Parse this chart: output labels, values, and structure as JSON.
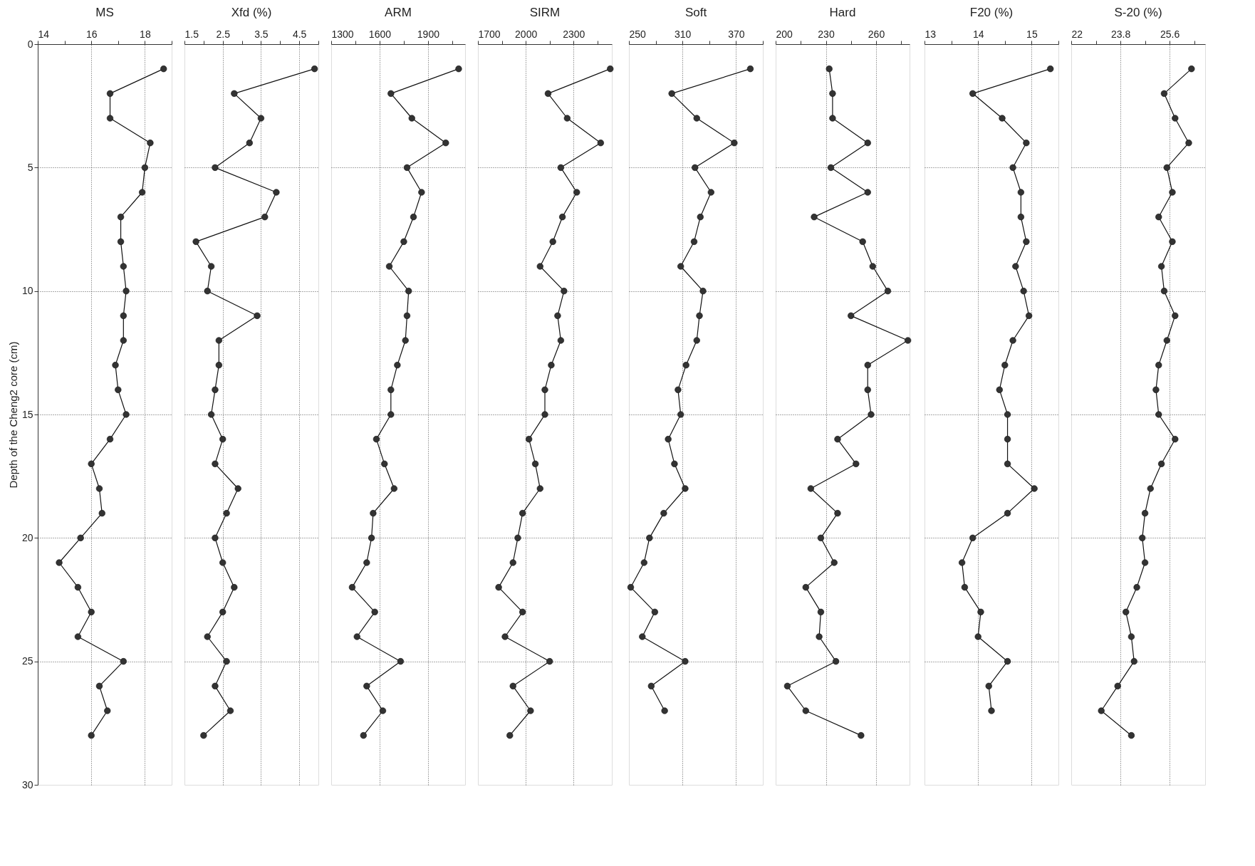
{
  "chart_data": [
    {
      "type": "line",
      "title": "MS",
      "ylabel": "Depth of the Cheng2 core (cm)",
      "orientation": "horizontal",
      "marker": "circle",
      "line_style": "solid",
      "grid": true,
      "x": [
        1,
        2,
        3,
        4,
        5,
        6,
        7,
        8,
        9,
        10,
        11,
        12,
        13,
        14,
        15,
        16,
        17,
        18,
        19,
        20,
        21,
        22,
        23,
        24,
        25,
        26,
        27,
        28
      ],
      "series": [
        {
          "color": "#333333",
          "values": [
            18.7,
            16.7,
            16.7,
            18.2,
            18.0,
            17.9,
            17.1,
            17.1,
            17.2,
            17.3,
            17.2,
            17.2,
            16.9,
            17.0,
            17.3,
            16.7,
            16.0,
            16.3,
            16.4,
            15.6,
            14.8,
            15.5,
            16.0,
            15.5,
            17.2,
            16.3,
            16.6,
            16.0
          ]
        }
      ],
      "xlim": [
        14,
        19
      ],
      "xticks": [
        14,
        {
          "value": 15,
          "label": null
        },
        16,
        {
          "value": 17,
          "label": null
        },
        18,
        {
          "value": 19,
          "label": null
        }
      ],
      "ylim": [
        30,
        0
      ],
      "yticks": [
        0,
        5,
        10,
        15,
        20,
        25,
        30
      ]
    },
    {
      "type": "line",
      "title": "Xfd (%)",
      "orientation": "horizontal",
      "marker": "circle",
      "line_style": "solid",
      "grid": true,
      "tick_labels": "x",
      "x": [
        1,
        2,
        3,
        4,
        5,
        6,
        7,
        8,
        9,
        10,
        11,
        12,
        13,
        14,
        15,
        16,
        17,
        18,
        19,
        20,
        21,
        22,
        23,
        24,
        25,
        26,
        27,
        28
      ],
      "series": [
        {
          "color": "#333333",
          "values": [
            4.9,
            2.8,
            3.5,
            3.2,
            2.3,
            3.9,
            3.6,
            1.8,
            2.2,
            2.1,
            3.4,
            2.4,
            2.4,
            2.3,
            2.2,
            2.5,
            2.3,
            2.9,
            2.6,
            2.3,
            2.5,
            2.8,
            2.5,
            2.1,
            2.6,
            2.3,
            2.7,
            2.0
          ]
        }
      ],
      "xlim": [
        1.5,
        5
      ],
      "xticks": [
        1.5,
        {
          "value": 2,
          "label": null
        },
        2.5,
        {
          "value": 3,
          "label": null
        },
        3.5,
        {
          "value": 4,
          "label": null
        },
        4.5,
        {
          "value": 5,
          "label": null
        }
      ],
      "ylim": [
        30,
        0
      ],
      "yticks": [
        0,
        5,
        10,
        15,
        20,
        25,
        30
      ]
    },
    {
      "type": "line",
      "title": "ARM",
      "orientation": "horizontal",
      "marker": "circle",
      "line_style": "solid",
      "grid": true,
      "tick_labels": "x",
      "x": [
        1,
        2,
        3,
        4,
        5,
        6,
        7,
        8,
        9,
        10,
        11,
        12,
        13,
        14,
        15,
        16,
        17,
        18,
        19,
        20,
        21,
        22,
        23,
        24,
        25,
        26,
        27,
        28
      ],
      "series": [
        {
          "color": "#333333",
          "values": [
            2090,
            1670,
            1800,
            2010,
            1770,
            1860,
            1810,
            1750,
            1660,
            1780,
            1770,
            1760,
            1710,
            1670,
            1670,
            1580,
            1630,
            1690,
            1560,
            1550,
            1520,
            1430,
            1570,
            1460,
            1730,
            1520,
            1620,
            1500
          ]
        }
      ],
      "xlim": [
        1300,
        2130
      ],
      "xticks": [
        1300,
        {
          "value": 1450,
          "label": null
        },
        1600,
        {
          "value": 1750,
          "label": null
        },
        1900,
        {
          "value": 2050,
          "label": null
        }
      ],
      "ylim": [
        30,
        0
      ],
      "yticks": [
        0,
        5,
        10,
        15,
        20,
        25,
        30
      ]
    },
    {
      "type": "line",
      "title": "SIRM",
      "orientation": "horizontal",
      "marker": "circle",
      "line_style": "solid",
      "grid": true,
      "tick_labels": "x",
      "x": [
        1,
        2,
        3,
        4,
        5,
        6,
        7,
        8,
        9,
        10,
        11,
        12,
        13,
        14,
        15,
        16,
        17,
        18,
        19,
        20,
        21,
        22,
        23,
        24,
        25,
        26,
        27,
        28
      ],
      "series": [
        {
          "color": "#333333",
          "values": [
            2530,
            2140,
            2260,
            2470,
            2220,
            2320,
            2230,
            2170,
            2090,
            2240,
            2200,
            2220,
            2160,
            2120,
            2120,
            2020,
            2060,
            2090,
            1980,
            1950,
            1920,
            1830,
            1980,
            1870,
            2150,
            1920,
            2030,
            1900
          ]
        }
      ],
      "xlim": [
        1700,
        2540
      ],
      "xticks": [
        1700,
        {
          "value": 1850,
          "label": null
        },
        2000,
        {
          "value": 2150,
          "label": null
        },
        2300,
        {
          "value": 2450,
          "label": null
        }
      ],
      "ylim": [
        30,
        0
      ],
      "yticks": [
        0,
        5,
        10,
        15,
        20,
        25,
        30
      ]
    },
    {
      "type": "line",
      "title": "Soft",
      "orientation": "horizontal",
      "marker": "circle",
      "line_style": "solid",
      "grid": true,
      "tick_labels": "x",
      "series": [
        {
          "color": "#333333",
          "x": [
            1,
            2,
            3,
            4,
            5,
            6,
            7,
            8,
            9,
            10,
            11,
            12,
            13,
            14,
            15,
            16,
            17,
            18,
            19,
            20,
            21,
            22,
            23,
            24,
            25,
            26,
            27
          ],
          "values": [
            386,
            298,
            326,
            368,
            324,
            342,
            330,
            323,
            308,
            333,
            329,
            326,
            314,
            305,
            308,
            294,
            301,
            313,
            289,
            273,
            267,
            252,
            279,
            265,
            313,
            275,
            290
          ]
        }
      ],
      "xlim": [
        250,
        400
      ],
      "xticks": [
        250,
        {
          "value": 280,
          "label": null
        },
        310,
        {
          "value": 340,
          "label": null
        },
        370,
        {
          "value": 400,
          "label": null
        }
      ],
      "ylim": [
        30,
        0
      ],
      "yticks": [
        0,
        5,
        10,
        15,
        20,
        25,
        30
      ]
    },
    {
      "type": "line",
      "title": "Hard",
      "orientation": "horizontal",
      "marker": "circle",
      "line_style": "solid",
      "grid": true,
      "tick_labels": "x",
      "x": [
        1,
        2,
        3,
        4,
        5,
        6,
        7,
        8,
        9,
        10,
        11,
        12,
        13,
        14,
        15,
        16,
        17,
        18,
        19,
        20,
        21,
        22,
        23,
        24,
        25,
        26,
        27,
        28
      ],
      "series": [
        {
          "color": "#333333",
          "values": [
            232,
            234,
            234,
            255,
            233,
            255,
            223,
            252,
            258,
            267,
            245,
            279,
            255,
            255,
            257,
            237,
            248,
            221,
            237,
            227,
            235,
            218,
            227,
            226,
            236,
            207,
            218,
            251
          ]
        }
      ],
      "xlim": [
        200,
        280
      ],
      "xticks": [
        200,
        {
          "value": 215,
          "label": null
        },
        230,
        {
          "value": 245,
          "label": null
        },
        260,
        {
          "value": 275,
          "label": null
        }
      ],
      "ylim": [
        30,
        0
      ],
      "yticks": [
        0,
        5,
        10,
        15,
        20,
        25,
        30
      ]
    },
    {
      "type": "line",
      "title": "F20 (%)",
      "orientation": "horizontal",
      "marker": "circle",
      "line_style": "solid",
      "grid": true,
      "tick_labels": "x",
      "series": [
        {
          "color": "#333333",
          "x": [
            1,
            2,
            3,
            4,
            5,
            6,
            7,
            8,
            9,
            10,
            11,
            12,
            13,
            14,
            15,
            16,
            17,
            18,
            19,
            20,
            21,
            22,
            23,
            24,
            25,
            26,
            27
          ],
          "values": [
            15.35,
            13.9,
            14.45,
            14.9,
            14.65,
            14.8,
            14.8,
            14.9,
            14.7,
            14.85,
            14.95,
            14.65,
            14.5,
            14.4,
            14.55,
            14.55,
            14.55,
            15.05,
            14.55,
            13.9,
            13.7,
            13.75,
            14.05,
            14.0,
            14.55,
            14.2,
            14.25
          ]
        }
      ],
      "xlim": [
        13,
        15.5
      ],
      "xticks": [
        13,
        {
          "value": 13.5,
          "label": null
        },
        14,
        {
          "value": 14.5,
          "label": null
        },
        15,
        {
          "value": 15.5,
          "label": null
        }
      ],
      "ylim": [
        30,
        0
      ],
      "yticks": [
        0,
        5,
        10,
        15,
        20,
        25,
        30
      ]
    },
    {
      "type": "line",
      "title": "S-20 (%)",
      "orientation": "horizontal",
      "marker": "circle",
      "line_style": "solid",
      "grid": true,
      "tick_labels": "x",
      "x": [
        1,
        2,
        3,
        4,
        5,
        6,
        7,
        8,
        9,
        10,
        11,
        12,
        13,
        14,
        15,
        16,
        17,
        18,
        19,
        20,
        21,
        22,
        23,
        24,
        25,
        26,
        27,
        28
      ],
      "series": [
        {
          "color": "#333333",
          "values": [
            26.4,
            25.4,
            25.8,
            26.3,
            25.5,
            25.7,
            25.2,
            25.7,
            25.3,
            25.4,
            25.8,
            25.5,
            25.2,
            25.1,
            25.2,
            25.8,
            25.3,
            24.9,
            24.7,
            24.6,
            24.7,
            24.4,
            24.0,
            24.2,
            24.3,
            23.7,
            23.1,
            24.2
          ]
        }
      ],
      "xlim": [
        22,
        26.9
      ],
      "xticks": [
        22,
        {
          "value": 22.9,
          "label": null
        },
        23.8,
        {
          "value": 24.7,
          "label": null
        },
        25.6,
        {
          "value": 26.5,
          "label": null
        }
      ],
      "ylim": [
        30,
        0
      ],
      "yticks": [
        0,
        5,
        10,
        15,
        20,
        25,
        30
      ]
    }
  ]
}
